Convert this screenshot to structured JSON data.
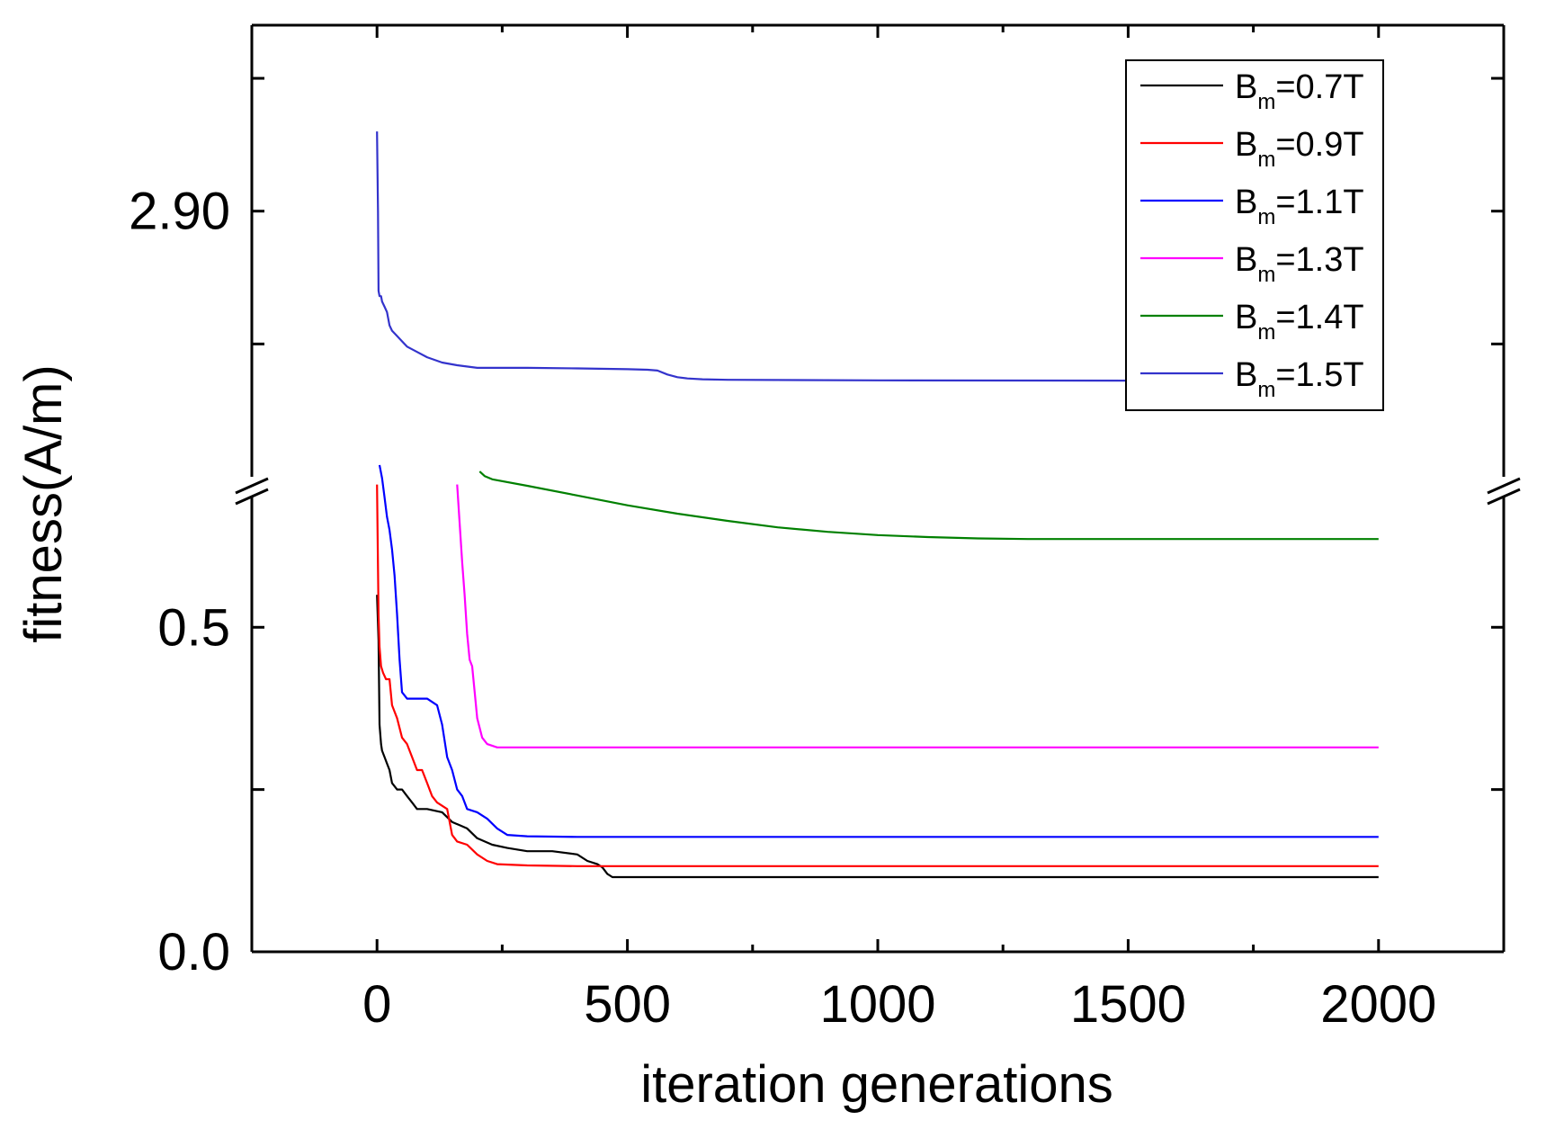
{
  "chart_data": {
    "type": "line",
    "title": "",
    "xlabel": "iteration generations",
    "ylabel": "fitness(A/m)",
    "xlim": [
      -250,
      2250
    ],
    "x_ticks": [
      0,
      500,
      1000,
      1500,
      2000
    ],
    "x_tick_labels": [
      "0",
      "500",
      "1000",
      "1500",
      "2000"
    ],
    "y_axis_break": true,
    "y_lower_segment": {
      "ylim": [
        0.0,
        0.7
      ],
      "ticks": [
        0.0,
        0.25,
        0.5
      ],
      "tick_labels": [
        "0.0",
        "",
        "0.5"
      ]
    },
    "y_upper_segment": {
      "ylim": [
        2.8,
        2.97
      ],
      "ticks": [
        2.85,
        2.9,
        2.95
      ],
      "tick_labels": [
        "",
        "2.90",
        ""
      ]
    },
    "legend_position": "top-right",
    "series": [
      {
        "name": "Bm=0.7T",
        "legend_base": "B",
        "legend_sub": "m",
        "legend_tail": "=0.7T",
        "color": "#000000",
        "segment": "lower",
        "x": [
          0,
          3,
          5,
          8,
          10,
          15,
          20,
          25,
          30,
          40,
          50,
          60,
          70,
          80,
          100,
          130,
          150,
          180,
          200,
          230,
          260,
          300,
          350,
          400,
          420,
          440,
          450,
          460,
          470,
          500,
          800,
          1200,
          1600,
          2000
        ],
        "y": [
          0.55,
          0.48,
          0.35,
          0.32,
          0.31,
          0.3,
          0.29,
          0.28,
          0.26,
          0.25,
          0.25,
          0.24,
          0.23,
          0.22,
          0.22,
          0.215,
          0.2,
          0.19,
          0.175,
          0.165,
          0.16,
          0.155,
          0.155,
          0.15,
          0.14,
          0.135,
          0.13,
          0.12,
          0.115,
          0.115,
          0.115,
          0.115,
          0.115,
          0.115
        ]
      },
      {
        "name": "Bm=0.9T",
        "legend_base": "B",
        "legend_sub": "m",
        "legend_tail": "=0.9T",
        "color": "#ff0000",
        "segment": "lower",
        "x": [
          0,
          3,
          5,
          8,
          12,
          18,
          25,
          30,
          40,
          50,
          60,
          70,
          80,
          90,
          100,
          110,
          120,
          140,
          150,
          160,
          180,
          200,
          220,
          240,
          300,
          400,
          500,
          800,
          1200,
          1600,
          2000
        ],
        "y": [
          0.72,
          0.52,
          0.47,
          0.44,
          0.43,
          0.42,
          0.42,
          0.38,
          0.36,
          0.33,
          0.32,
          0.3,
          0.28,
          0.28,
          0.26,
          0.24,
          0.23,
          0.22,
          0.18,
          0.17,
          0.165,
          0.15,
          0.14,
          0.135,
          0.133,
          0.132,
          0.132,
          0.132,
          0.132,
          0.132,
          0.132
        ]
      },
      {
        "name": "Bm=1.1T",
        "legend_base": "B",
        "legend_sub": "m",
        "legend_tail": "=1.1T",
        "color": "#0000ff",
        "segment": "lower",
        "x": [
          5,
          10,
          15,
          20,
          25,
          30,
          35,
          40,
          45,
          50,
          60,
          80,
          100,
          120,
          130,
          140,
          150,
          160,
          170,
          180,
          200,
          220,
          240,
          260,
          300,
          400,
          600,
          1000,
          1500,
          2000
        ],
        "y": [
          0.75,
          0.73,
          0.7,
          0.67,
          0.65,
          0.62,
          0.58,
          0.52,
          0.45,
          0.4,
          0.39,
          0.39,
          0.39,
          0.38,
          0.35,
          0.3,
          0.28,
          0.25,
          0.24,
          0.22,
          0.215,
          0.205,
          0.19,
          0.18,
          0.178,
          0.177,
          0.177,
          0.177,
          0.177,
          0.177
        ]
      },
      {
        "name": "Bm=1.3T",
        "legend_base": "B",
        "legend_sub": "m",
        "legend_tail": "=1.3T",
        "color": "#ff00ff",
        "segment": "lower",
        "x": [
          160,
          165,
          170,
          175,
          180,
          185,
          190,
          195,
          200,
          210,
          220,
          240,
          300,
          500,
          1000,
          1500,
          2000
        ],
        "y": [
          0.72,
          0.66,
          0.6,
          0.55,
          0.49,
          0.45,
          0.44,
          0.4,
          0.36,
          0.33,
          0.32,
          0.315,
          0.315,
          0.315,
          0.315,
          0.315,
          0.315
        ]
      },
      {
        "name": "Bm=1.4T",
        "legend_base": "B",
        "legend_sub": "m",
        "legend_tail": "=1.4T",
        "color": "#008000",
        "segment": "lower",
        "x": [
          205,
          215,
          230,
          300,
          400,
          500,
          600,
          700,
          800,
          900,
          1000,
          1100,
          1200,
          1300,
          1500,
          1800,
          2000
        ],
        "y": [
          0.74,
          0.733,
          0.728,
          0.718,
          0.703,
          0.688,
          0.675,
          0.664,
          0.654,
          0.647,
          0.642,
          0.639,
          0.637,
          0.636,
          0.636,
          0.636,
          0.636
        ]
      },
      {
        "name": "Bm=1.5T",
        "legend_base": "B",
        "legend_sub": "m",
        "legend_tail": "=1.5T",
        "color": "#3333cc",
        "segment": "upper",
        "x": [
          0,
          2,
          3,
          5,
          8,
          10,
          15,
          20,
          25,
          30,
          40,
          50,
          60,
          80,
          100,
          130,
          160,
          200,
          250,
          300,
          400,
          500,
          540,
          560,
          580,
          600,
          620,
          650,
          700,
          1000,
          1500,
          2000
        ],
        "y": [
          2.93,
          2.9,
          2.87,
          2.868,
          2.868,
          2.866,
          2.864,
          2.862,
          2.857,
          2.855,
          2.853,
          2.851,
          2.849,
          2.847,
          2.845,
          2.843,
          2.842,
          2.841,
          2.841,
          2.841,
          2.8408,
          2.8405,
          2.8403,
          2.84,
          2.8385,
          2.8375,
          2.837,
          2.8367,
          2.8365,
          2.8363,
          2.8362,
          2.836
        ]
      }
    ]
  }
}
